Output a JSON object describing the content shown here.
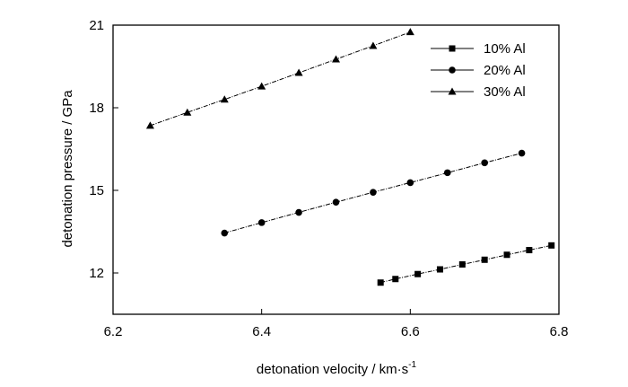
{
  "chart_data": {
    "type": "line",
    "xlabel": "detonation  velocity  / km·s",
    "xlabel_superscript": "-1",
    "ylabel": "detonation pressure / GPa",
    "xlim": [
      6.2,
      6.8
    ],
    "ylim": [
      10.5,
      21
    ],
    "xticks": [
      "6.2",
      "6.4",
      "6.6",
      "6.8"
    ],
    "yticks": [
      "12",
      "15",
      "18",
      "21"
    ],
    "grid": false,
    "legend_position": "top-right",
    "series": [
      {
        "name": "10% Al",
        "marker": "square",
        "x": [
          6.56,
          6.58,
          6.61,
          6.64,
          6.67,
          6.7,
          6.73,
          6.76,
          6.79
        ],
        "y": [
          11.65,
          11.78,
          11.96,
          12.13,
          12.31,
          12.48,
          12.66,
          12.83,
          13.0
        ]
      },
      {
        "name": "20% Al",
        "marker": "circle",
        "x": [
          6.35,
          6.4,
          6.45,
          6.5,
          6.55,
          6.6,
          6.65,
          6.7,
          6.75
        ],
        "y": [
          13.45,
          13.83,
          14.2,
          14.57,
          14.93,
          15.28,
          15.64,
          16.0,
          16.35
        ]
      },
      {
        "name": "30% Al",
        "marker": "triangle",
        "x": [
          6.25,
          6.3,
          6.35,
          6.4,
          6.45,
          6.5,
          6.55,
          6.6
        ],
        "y": [
          17.35,
          17.83,
          18.3,
          18.78,
          19.27,
          19.76,
          20.25,
          20.75
        ]
      }
    ]
  }
}
